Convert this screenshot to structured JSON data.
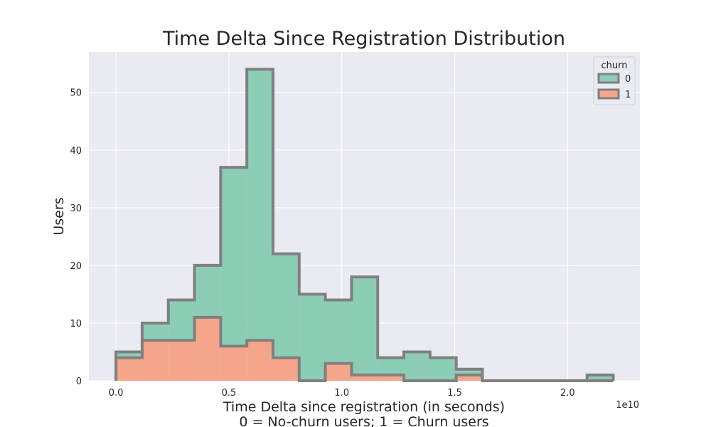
{
  "chart_data": {
    "type": "histogram",
    "title": "Time Delta Since Registration Distribution",
    "xlabel": "Time Delta since registration (in seconds)",
    "xlabel_note": "0 = No-churn users; 1 = Churn users",
    "ylabel": "Users",
    "x_offset_text": "1e10",
    "xlim": [
      -0.12,
      2.32
    ],
    "ylim": [
      0,
      57
    ],
    "x_ticks": [
      0.0,
      0.5,
      1.0,
      1.5,
      2.0
    ],
    "x_tick_labels": [
      "0.0",
      "0.5",
      "1.0",
      "1.5",
      "2.0"
    ],
    "y_ticks": [
      0,
      10,
      20,
      30,
      40,
      50
    ],
    "y_tick_labels": [
      "0",
      "10",
      "20",
      "30",
      "40",
      "50"
    ],
    "grid": true,
    "stacked": true,
    "bin_edges": [
      0.0,
      0.1159,
      0.2318,
      0.3477,
      0.4636,
      0.5795,
      0.6954,
      0.8113,
      0.9272,
      1.0431,
      1.159,
      1.2749,
      1.3908,
      1.5067,
      1.6226,
      1.7385,
      1.8544,
      1.9703,
      2.0862,
      2.2021
    ],
    "series": [
      {
        "name": "0",
        "color": "#8ccdb6",
        "values": [
          1,
          3,
          7,
          9,
          31,
          47,
          18,
          15,
          11,
          17,
          3,
          5,
          4,
          1,
          0,
          0,
          0,
          0,
          1
        ]
      },
      {
        "name": "1",
        "color": "#f5a68a",
        "values": [
          4,
          7,
          7,
          11,
          6,
          7,
          4,
          0,
          3,
          1,
          1,
          0,
          0,
          1,
          0,
          0,
          0,
          0,
          0
        ]
      }
    ],
    "totals": [
      5,
      10,
      14,
      20,
      37,
      54,
      22,
      15,
      14,
      18,
      4,
      5,
      4,
      2,
      0,
      0,
      0,
      0,
      1
    ],
    "legend": {
      "title": "churn",
      "position": "top-right",
      "entries": [
        "0",
        "1"
      ]
    },
    "edge_color": "#808080"
  }
}
